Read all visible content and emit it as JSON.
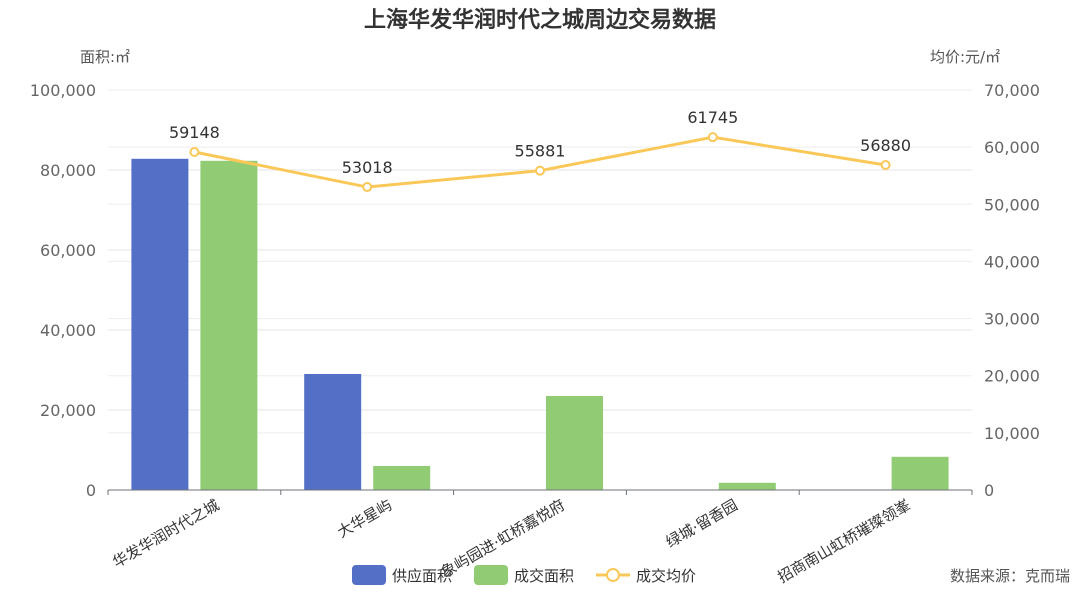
{
  "chart_data": {
    "type": "bar",
    "title": "上海华发华润时代之城周边交易数据",
    "categories": [
      "华发华润时代之城",
      "大华星屿",
      "象屿园进·虹桥嘉悦府",
      "绿城·留香园",
      "招商南山虹桥璀璨领峯"
    ],
    "left_axis": {
      "name": "面积:㎡",
      "min": 0,
      "max": 100000,
      "ticks": [
        "0",
        "20,000",
        "40,000",
        "60,000",
        "80,000",
        "100,000"
      ]
    },
    "right_axis": {
      "name": "均价:元/㎡",
      "min": 0,
      "max": 70000,
      "ticks": [
        "0",
        "10,000",
        "20,000",
        "30,000",
        "40,000",
        "50,000",
        "60,000",
        "70,000"
      ]
    },
    "series": [
      {
        "name": "供应面积",
        "type": "bar",
        "axis": "left",
        "color": "#5470c6",
        "values": [
          82800,
          29000,
          0,
          0,
          0
        ]
      },
      {
        "name": "成交面积",
        "type": "bar",
        "axis": "left",
        "color": "#91cc75",
        "values": [
          82300,
          6000,
          23500,
          1800,
          8300
        ]
      },
      {
        "name": "成交均价",
        "type": "line",
        "axis": "right",
        "color": "#fac858",
        "values": [
          59148,
          53018,
          55881,
          61745,
          56880
        ],
        "labels": [
          "59148",
          "53018",
          "55881",
          "61745",
          "56880"
        ]
      }
    ],
    "legend_position": "bottom-center",
    "source": "数据来源：克而瑞"
  }
}
